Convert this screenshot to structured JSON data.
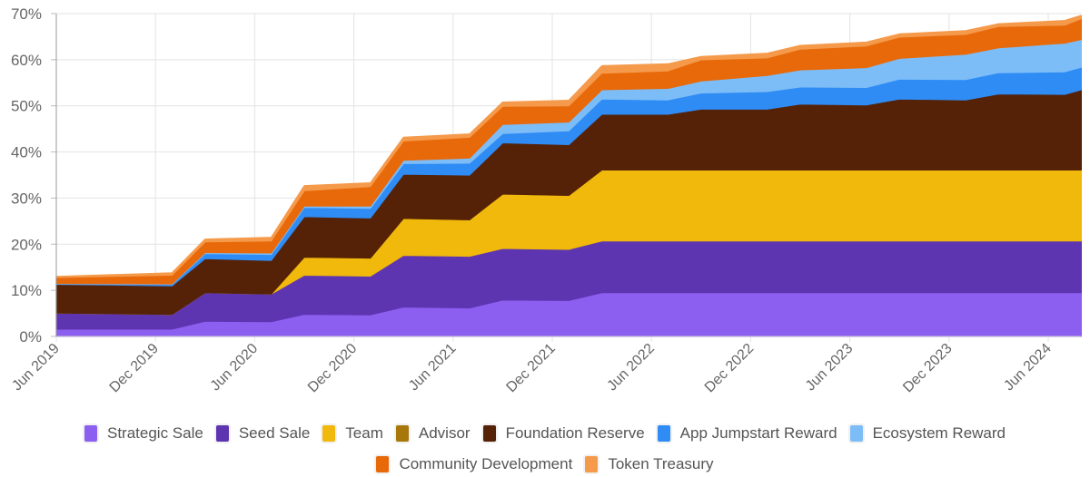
{
  "chart_data": {
    "type": "area",
    "stacked": true,
    "title": "",
    "xlabel": "",
    "ylabel": "",
    "ylim": [
      0,
      70
    ],
    "y_ticks": [
      "0%",
      "10%",
      "20%",
      "30%",
      "40%",
      "50%",
      "60%",
      "70%"
    ],
    "x_ticks": [
      "Jun 2019",
      "Dec 2019",
      "Jun 2020",
      "Dec 2020",
      "Jun 2021",
      "Dec 2021",
      "Jun 2022",
      "Dec 2022",
      "Jun 2023",
      "Dec 2023",
      "Jun 2024"
    ],
    "grid": true,
    "legend_position": "bottom",
    "x": [
      "2019-06",
      "2020-01",
      "2020-03",
      "2020-07",
      "2020-09",
      "2021-01",
      "2021-03",
      "2021-07",
      "2021-09",
      "2022-01",
      "2022-03",
      "2022-07",
      "2022-09",
      "2023-01",
      "2023-03",
      "2023-07",
      "2023-09",
      "2024-01",
      "2024-03",
      "2024-07",
      "2024-08"
    ],
    "series": [
      {
        "name": "Strategic Sale",
        "color": "#8c5ff0",
        "values": [
          1.6,
          1.6,
          3.3,
          3.2,
          4.8,
          4.7,
          6.4,
          6.2,
          7.9,
          7.8,
          9.5,
          9.5,
          9.5,
          9.5,
          9.5,
          9.5,
          9.5,
          9.5,
          9.5,
          9.5,
          9.5
        ]
      },
      {
        "name": "Seed Sale",
        "color": "#5e35b1",
        "values": [
          3.5,
          3.2,
          6.2,
          6.0,
          8.5,
          8.4,
          11.2,
          11.2,
          11.2,
          11.1,
          11.2,
          11.2,
          11.2,
          11.2,
          11.2,
          11.2,
          11.2,
          11.2,
          11.2,
          11.2,
          11.2
        ]
      },
      {
        "name": "Team",
        "color": "#f0b90b",
        "values": [
          0,
          0,
          0,
          0,
          3.9,
          3.9,
          8.0,
          7.9,
          11.8,
          11.7,
          15.4,
          15.4,
          15.4,
          15.4,
          15.4,
          15.4,
          15.4,
          15.4,
          15.4,
          15.4,
          15.4
        ]
      },
      {
        "name": "Advisor",
        "color": "#a8770a",
        "values": [
          0,
          0,
          0,
          0,
          0,
          0,
          0,
          0,
          0,
          0,
          0,
          0,
          0,
          0,
          0,
          0,
          0,
          0,
          0,
          0,
          0
        ]
      },
      {
        "name": "Foundation Reserve",
        "color": "#552208",
        "values": [
          6.2,
          6.2,
          7.4,
          7.3,
          8.8,
          8.7,
          9.6,
          9.7,
          11.1,
          11.0,
          12.1,
          12.1,
          13.2,
          13.2,
          14.3,
          14.1,
          15.4,
          15.2,
          16.5,
          16.4,
          17.4
        ]
      },
      {
        "name": "App Jumpstart Reward",
        "color": "#2f8cf5",
        "values": [
          0.1,
          0.3,
          1.1,
          1.3,
          2.0,
          2.1,
          2.3,
          2.6,
          2.0,
          3.0,
          3.3,
          3.1,
          3.5,
          3.8,
          3.7,
          3.8,
          4.3,
          4.4,
          4.6,
          4.9,
          4.9
        ]
      },
      {
        "name": "Ecosystem Reward",
        "color": "#7dbdf7",
        "values": [
          0.1,
          0.1,
          0.2,
          0.3,
          0.3,
          0.5,
          0.7,
          1.1,
          2.0,
          1.9,
          2.0,
          2.5,
          2.6,
          3.5,
          3.7,
          4.3,
          4.5,
          5.5,
          5.4,
          6.2,
          6.0
        ]
      },
      {
        "name": "Community Development",
        "color": "#e8690a",
        "values": [
          1.3,
          1.9,
          2.3,
          2.6,
          3.3,
          4.2,
          4.2,
          4.5,
          3.9,
          3.5,
          3.6,
          3.8,
          4.6,
          3.8,
          4.5,
          4.7,
          4.6,
          4.3,
          4.6,
          3.9,
          4.5
        ]
      },
      {
        "name": "Token Treasury",
        "color": "#f59a4a",
        "values": [
          0.2,
          0.5,
          0.6,
          0.8,
          1.1,
          0.8,
          0.8,
          0.7,
          0.9,
          1.2,
          1.6,
          1.5,
          0.7,
          1.0,
          0.8,
          0.8,
          0.7,
          0.8,
          0.6,
          1.0,
          0.7
        ]
      }
    ]
  }
}
